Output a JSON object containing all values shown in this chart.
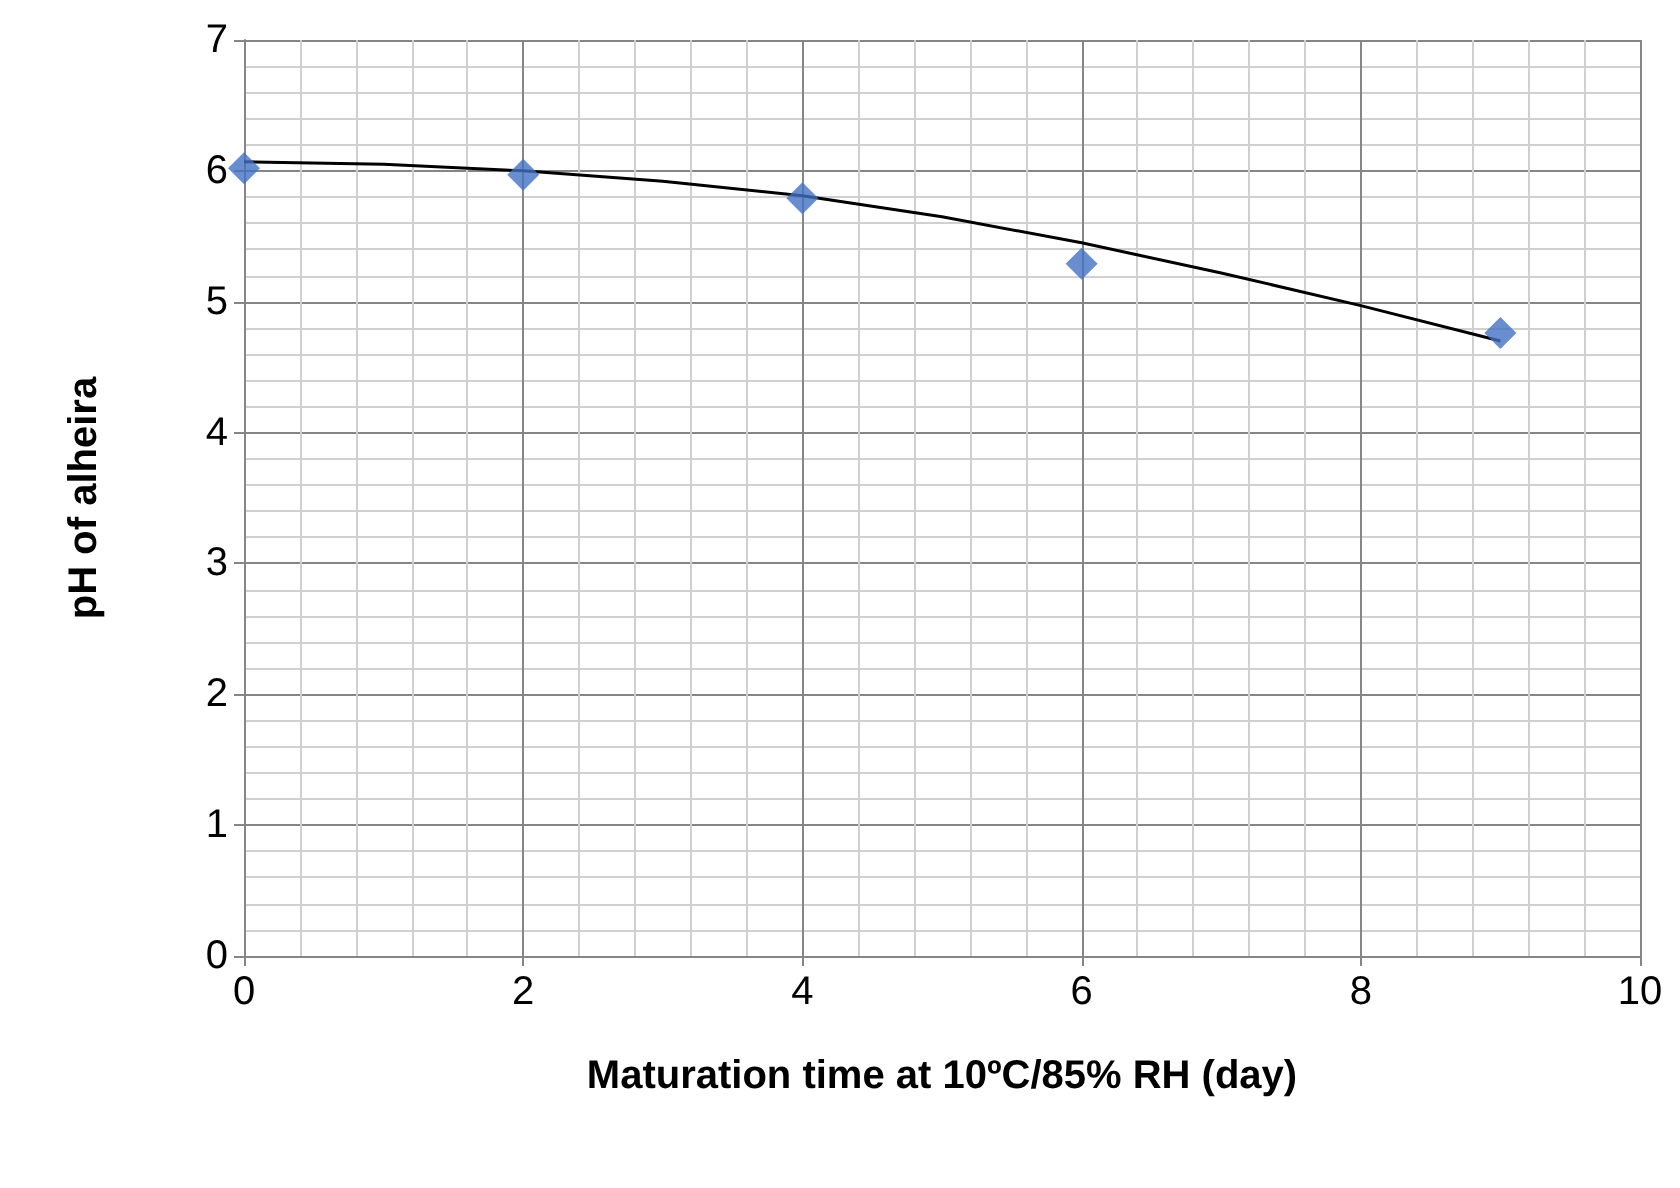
{
  "chart_data": {
    "type": "scatter",
    "xlabel": "Maturation time at 10ºC/85% RH (day)",
    "ylabel": "pH of alheira",
    "xlim": [
      0,
      10
    ],
    "xticks": [
      0,
      2,
      4,
      6,
      8,
      10
    ],
    "ylim": [
      0,
      7
    ],
    "yticks": [
      0,
      1,
      2,
      3,
      4,
      5,
      6,
      7
    ],
    "grid": true,
    "series": [
      {
        "marker": "diamond",
        "color": "#4472c4",
        "x": [
          0,
          2,
          4,
          6,
          9
        ],
        "values": [
          6.02,
          5.97,
          5.79,
          5.29,
          4.76
        ]
      },
      {
        "type": "line",
        "marker": "none",
        "line_style": "solid",
        "color": "#000000",
        "x": [
          0,
          1,
          2,
          3,
          4,
          5,
          6,
          7,
          8,
          9
        ],
        "values": [
          6.07,
          6.05,
          6.0,
          5.92,
          5.81,
          5.65,
          5.45,
          5.22,
          4.97,
          4.7
        ]
      }
    ]
  }
}
